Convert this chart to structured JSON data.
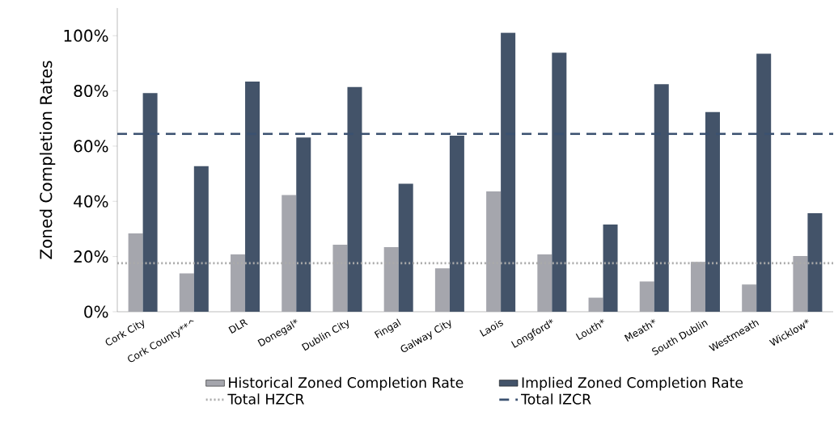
{
  "chart_data": {
    "type": "bar",
    "ylabel": "Zoned Completion Rates",
    "categories": [
      "Cork City",
      "Cork County**^",
      "DLR",
      "Donegal*",
      "Dublin City",
      "Fingal",
      "Galway City",
      "Laois",
      "Longford*",
      "Louth*",
      "Meath*",
      "South Dublin",
      "Westmeath",
      "Wicklow*"
    ],
    "series": [
      {
        "name": "Historical Zoned Completion Rate",
        "color": "#a5a6ad",
        "values": [
          28.4,
          13.9,
          20.8,
          42.3,
          24.3,
          23.4,
          15.7,
          43.6,
          20.8,
          5.1,
          11.0,
          18.1,
          9.9,
          20.2
        ]
      },
      {
        "name": "Implied Zoned Completion Rate",
        "color": "#435369",
        "values": [
          79.2,
          52.7,
          83.4,
          63.1,
          81.4,
          46.4,
          63.8,
          101.1,
          93.8,
          31.6,
          82.4,
          72.3,
          93.5,
          35.7
        ]
      }
    ],
    "ref_lines": [
      {
        "axis": "y",
        "value": 17.6,
        "label": "Total HZCR",
        "color": "#aaaaaa",
        "line_style": "dotted"
      },
      {
        "axis": "y",
        "value": 64.4,
        "label": "Total IZCR",
        "color": "#3b5170",
        "line_style": "dashed"
      }
    ],
    "ylim": [
      0,
      110
    ],
    "yticks": [
      {
        "value": 0,
        "label": "0%"
      },
      {
        "value": 20,
        "label": "20%"
      },
      {
        "value": 40,
        "label": "40%"
      },
      {
        "value": 60,
        "label": "60%"
      },
      {
        "value": 80,
        "label": "80%"
      },
      {
        "value": 100,
        "label": "100%"
      }
    ],
    "grid": false,
    "legend": "bottom"
  }
}
